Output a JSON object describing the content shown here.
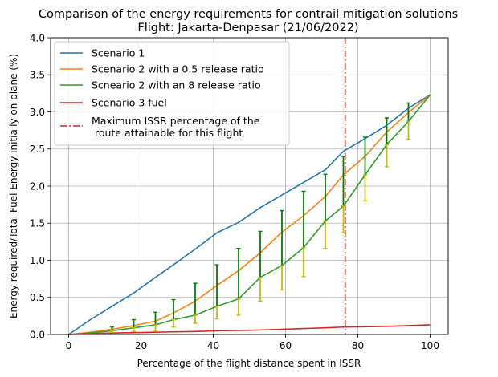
{
  "chart_data": {
    "type": "line",
    "title": "Comparison of the energy requirements for contrail mitigation solutions",
    "subtitle": "Flight: Jakarta-Denpasar (21/06/2022)",
    "xlabel": "Percentage of the flight distance spent in ISSR",
    "ylabel": "Energy required/Total Fuel Energy initially on plane (%)",
    "xlim": [
      -5,
      105
    ],
    "ylim": [
      0,
      4.0
    ],
    "xticks": [
      0,
      20,
      40,
      60,
      80,
      100
    ],
    "xtick_labels": [
      "0",
      "20",
      "40",
      "60",
      "80",
      "100"
    ],
    "yticks": [
      0,
      0.5,
      1.0,
      1.5,
      2.0,
      2.5,
      3.0,
      3.5,
      4.0
    ],
    "ytick_labels": [
      "0.0",
      "0.5",
      "1.0",
      "1.5",
      "2.0",
      "2.5",
      "3.0",
      "3.5",
      "4.0"
    ],
    "grid": true,
    "legend_position": "upper-left",
    "series": [
      {
        "name": "Scenario 1",
        "color": "#1f77b4",
        "x": [
          0,
          6,
          12,
          18,
          24,
          29,
          35,
          41,
          47,
          53,
          59,
          65,
          71,
          76,
          82,
          88,
          94,
          100
        ],
        "y": [
          0,
          0.2,
          0.38,
          0.56,
          0.77,
          0.94,
          1.15,
          1.37,
          1.51,
          1.71,
          1.88,
          2.05,
          2.22,
          2.47,
          2.64,
          2.82,
          3.05,
          3.23
        ]
      },
      {
        "name": "Scenario 2 with a 0.5 release ratio",
        "color": "#ff7f0e",
        "x": [
          0,
          6,
          12,
          18,
          24,
          29,
          35,
          41,
          47,
          53,
          59,
          65,
          71,
          76,
          82,
          88,
          94,
          100
        ],
        "y": [
          0,
          0.03,
          0.07,
          0.12,
          0.18,
          0.29,
          0.45,
          0.66,
          0.86,
          1.1,
          1.38,
          1.6,
          1.86,
          2.15,
          2.4,
          2.73,
          2.99,
          3.23
        ]
      },
      {
        "name": "Scneario 2 with an 8 release ratio",
        "color": "#2ca02c",
        "x": [
          0,
          6,
          12,
          18,
          24,
          29,
          35,
          41,
          47,
          53,
          59,
          65,
          71,
          76,
          82,
          88,
          94,
          100
        ],
        "y": [
          0,
          0.02,
          0.05,
          0.09,
          0.13,
          0.2,
          0.26,
          0.38,
          0.48,
          0.77,
          0.93,
          1.17,
          1.53,
          1.73,
          2.15,
          2.56,
          2.87,
          3.23
        ]
      },
      {
        "name": "Scenario 3 fuel",
        "color": "#d62728",
        "x": [
          0,
          6,
          12,
          18,
          24,
          29,
          35,
          41,
          47,
          53,
          59,
          65,
          71,
          76,
          82,
          88,
          94,
          100
        ],
        "y": [
          0,
          0.01,
          0.02,
          0.025,
          0.03,
          0.035,
          0.04,
          0.05,
          0.055,
          0.06,
          0.07,
          0.08,
          0.09,
          0.1,
          0.105,
          0.11,
          0.12,
          0.13
        ]
      }
    ],
    "error_bars": [
      {
        "color": "#008000",
        "x": [
          12,
          18,
          24,
          29,
          35,
          41,
          47,
          53,
          59,
          65,
          71,
          76,
          82,
          88,
          94
        ],
        "lower": [
          0.05,
          0.09,
          0.13,
          0.2,
          0.26,
          0.38,
          0.48,
          0.77,
          0.93,
          1.17,
          1.53,
          1.73,
          2.15,
          2.56,
          2.87
        ],
        "upper": [
          0.1,
          0.2,
          0.3,
          0.47,
          0.69,
          0.94,
          1.16,
          1.39,
          1.67,
          1.93,
          2.16,
          2.4,
          2.66,
          2.92,
          3.12
        ]
      },
      {
        "color": "#bfbf00",
        "x": [
          12,
          18,
          24,
          29,
          35,
          41,
          47,
          53,
          59,
          65,
          71,
          76,
          82,
          88,
          94
        ],
        "lower": [
          0.03,
          0.04,
          0.05,
          0.1,
          0.15,
          0.21,
          0.26,
          0.45,
          0.6,
          0.78,
          1.16,
          1.37,
          1.8,
          2.26,
          2.63
        ],
        "upper": [
          0.05,
          0.09,
          0.13,
          0.2,
          0.26,
          0.38,
          0.48,
          0.77,
          0.93,
          1.17,
          1.53,
          1.73,
          2.15,
          2.56,
          2.87
        ]
      }
    ],
    "vline": {
      "x": 76.5,
      "color": "#d62728",
      "style": "dash-dot",
      "label_line1": "Maximum ISSR percentage of the",
      "label_line2": " route attainable for this flight"
    }
  }
}
